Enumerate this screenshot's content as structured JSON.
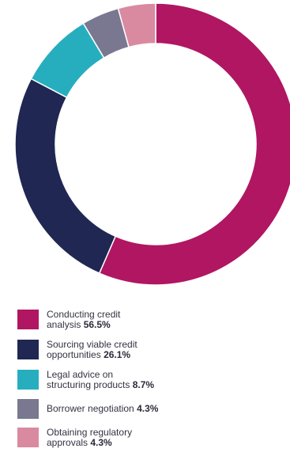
{
  "chart_data": {
    "type": "pie",
    "variant": "donut",
    "categories": [
      "Conducting credit analysis",
      "Sourcing viable credit opportunities",
      "Legal advice on structuring products",
      "Borrower negotiation",
      "Obtaining regulatory approvals"
    ],
    "values": [
      56.5,
      26.1,
      8.7,
      4.3,
      4.3
    ],
    "value_labels": [
      "56.5%",
      "26.1%",
      "8.7%",
      "4.3%",
      "4.3%"
    ],
    "colors": [
      "#b01662",
      "#1f2752",
      "#26aebf",
      "#7a7890",
      "#d98aa0"
    ],
    "legend_position": "bottom-left",
    "start_angle": "top, clockwise"
  },
  "legend": [
    {
      "line1": "Conducting credit",
      "line2": "analysis",
      "value": "56.5%"
    },
    {
      "line1": "Sourcing viable credit",
      "line2": "opportunities",
      "value": "26.1%"
    },
    {
      "line1": "Legal advice on",
      "line2": "structuring products",
      "value": "8.7%"
    },
    {
      "line1": "",
      "line2": "Borrower negotiation",
      "value": "4.3%"
    },
    {
      "line1": "Obtaining regulatory",
      "line2": "approvals",
      "value": "4.3%"
    }
  ]
}
